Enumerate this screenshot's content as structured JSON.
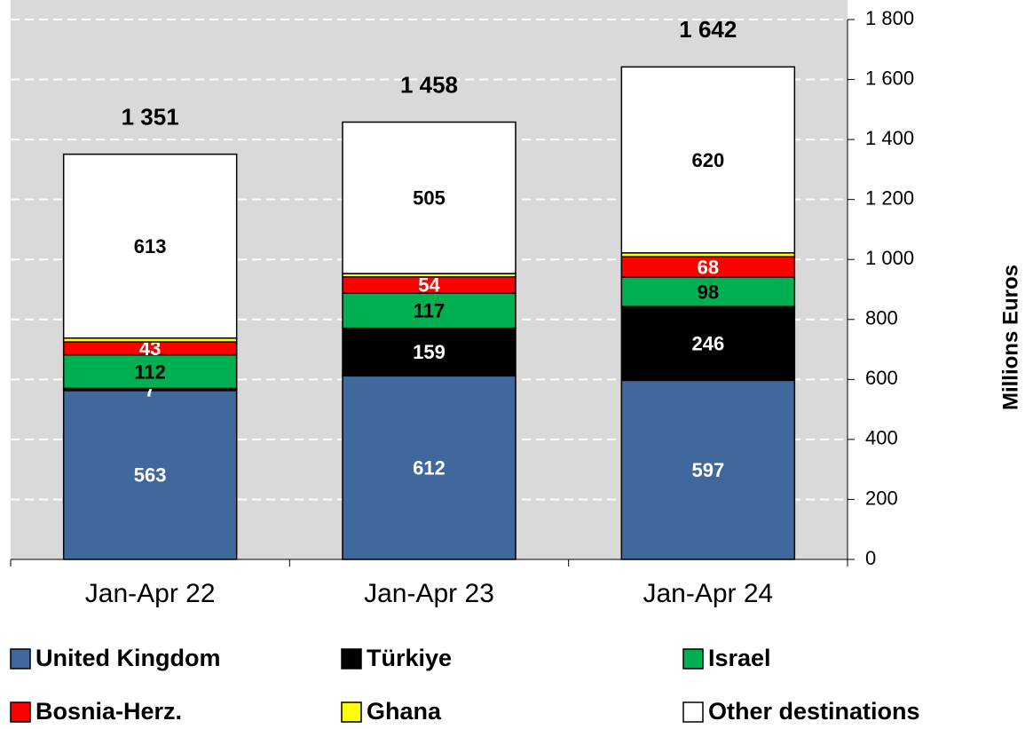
{
  "chart_data": {
    "type": "stacked_bar",
    "categories": [
      "Jan-Apr 22",
      "Jan-Apr 23",
      "Jan-Apr 24"
    ],
    "series": [
      {
        "name": "United Kingdom",
        "color": "#41689c",
        "label_color": "#ffffff",
        "show_labels": true,
        "values": [
          563,
          612,
          597
        ]
      },
      {
        "name": "Türkiye",
        "color": "#000000",
        "label_color": "#ffffff",
        "show_labels": true,
        "values": [
          7,
          159,
          246
        ]
      },
      {
        "name": "Israel",
        "color": "#00b050",
        "label_color": "#000000",
        "show_labels": true,
        "values": [
          112,
          117,
          98
        ]
      },
      {
        "name": "Bosnia-Herz.",
        "color": "#ff0000",
        "label_color": "#ffffff",
        "show_labels": true,
        "values": [
          43,
          54,
          68
        ]
      },
      {
        "name": "Ghana",
        "color": "#ffff00",
        "label_color": "#000000",
        "show_labels": false,
        "values": [
          13,
          11,
          13
        ]
      },
      {
        "name": "Other destinations",
        "color": "#ffffff",
        "label_color": "#000000",
        "show_labels": true,
        "values": [
          613,
          505,
          620
        ]
      }
    ],
    "totals": [
      {
        "value": 1351,
        "label": "1 351"
      },
      {
        "value": 1458,
        "label": "1 458"
      },
      {
        "value": 1642,
        "label": "1 642"
      }
    ],
    "y_axis_label": "Millions Euros",
    "ylim": [
      0,
      1800
    ],
    "yticks": [
      0,
      200,
      400,
      600,
      800,
      {
        "value": 1000,
        "label": "1 000"
      },
      {
        "value": 1200,
        "label": "1 200"
      },
      {
        "value": 1400,
        "label": "1 400"
      },
      {
        "value": 1600,
        "label": "1 600"
      },
      {
        "value": 1800,
        "label": "1 800"
      }
    ],
    "grid": true
  }
}
